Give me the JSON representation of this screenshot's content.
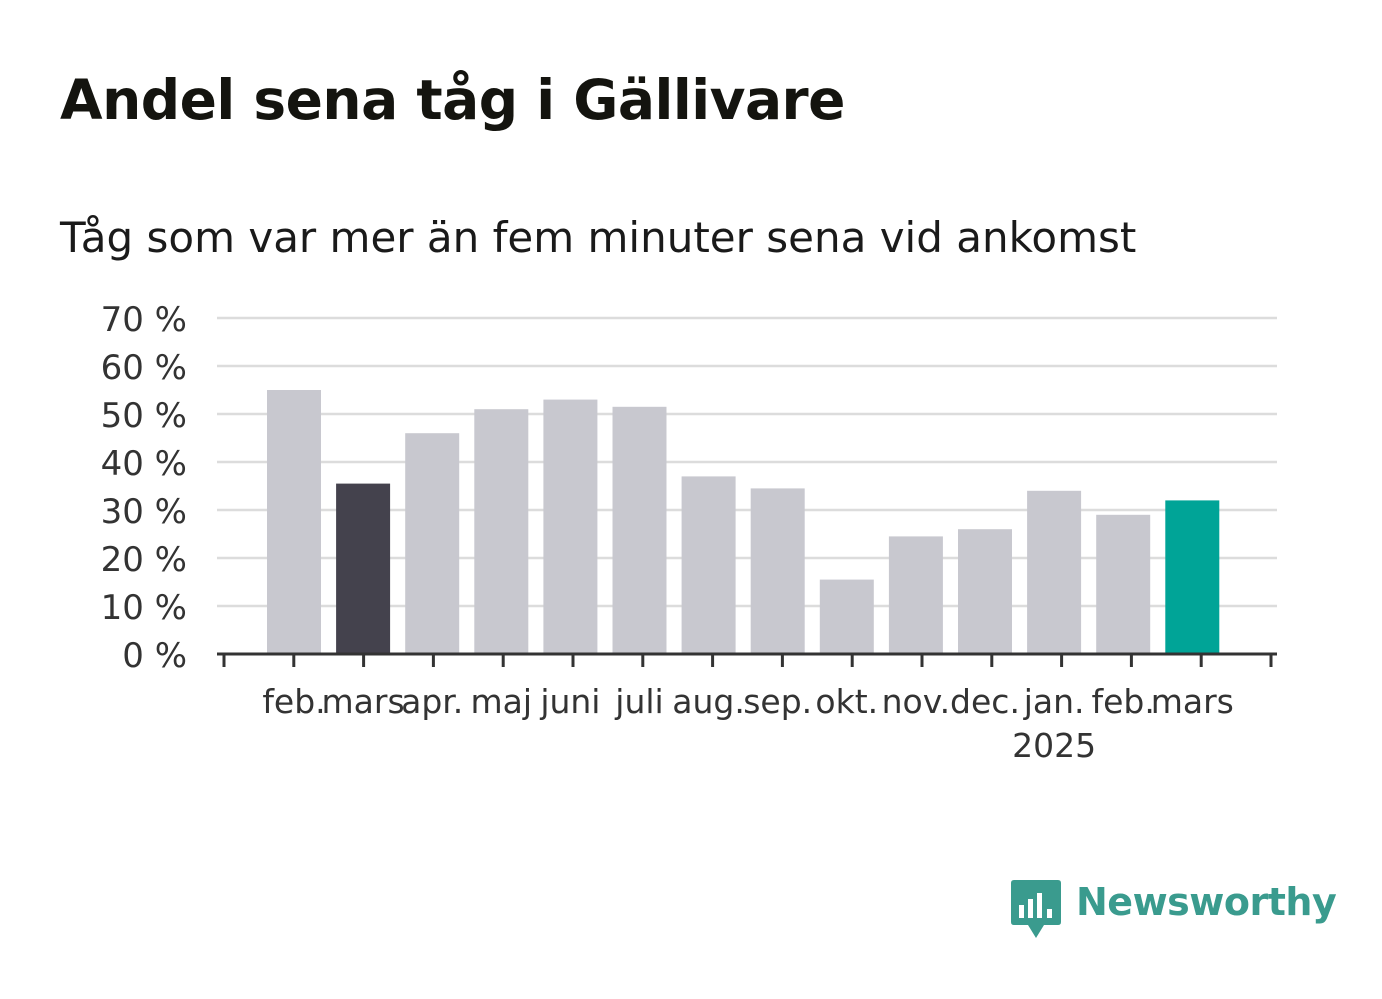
{
  "title": "Andel sena tåg i Gällivare",
  "subtitle": "Tåg som var mer än fem minuter sena vid ankomst",
  "brand": {
    "name": "Newsworthy",
    "icon": "newsworthy-logo-icon",
    "color": "#3a9b8e"
  },
  "colors": {
    "default_bar": "#c8c8cf",
    "highlight_previous_year": "#44424d",
    "highlight_current": "#00a497",
    "grid": "#dcdcdc",
    "axis": "#333333"
  },
  "chart_data": {
    "type": "bar",
    "categories": [
      "feb.",
      "mars",
      "apr.",
      "maj",
      "juni",
      "juli",
      "aug.",
      "sep.",
      "okt.",
      "nov.",
      "dec.",
      "jan.",
      "feb.",
      "mars"
    ],
    "category_sublabels": [
      "",
      "",
      "",
      "",
      "",
      "",
      "",
      "",
      "",
      "",
      "",
      "2025",
      "",
      ""
    ],
    "values": [
      55,
      35.5,
      46,
      51,
      53,
      51.5,
      37,
      34.5,
      15.5,
      24.5,
      26,
      34,
      29,
      32
    ],
    "bar_colors": [
      "#c8c8cf",
      "#44424d",
      "#c8c8cf",
      "#c8c8cf",
      "#c8c8cf",
      "#c8c8cf",
      "#c8c8cf",
      "#c8c8cf",
      "#c8c8cf",
      "#c8c8cf",
      "#c8c8cf",
      "#c8c8cf",
      "#c8c8cf",
      "#00a497"
    ],
    "yticks": [
      "0 %",
      "10 %",
      "20 %",
      "30 %",
      "40 %",
      "50 %",
      "60 %",
      "70 %"
    ],
    "ylim": [
      0,
      70
    ],
    "ytick_step": 10,
    "grid": true,
    "xlabel": "",
    "ylabel": ""
  }
}
